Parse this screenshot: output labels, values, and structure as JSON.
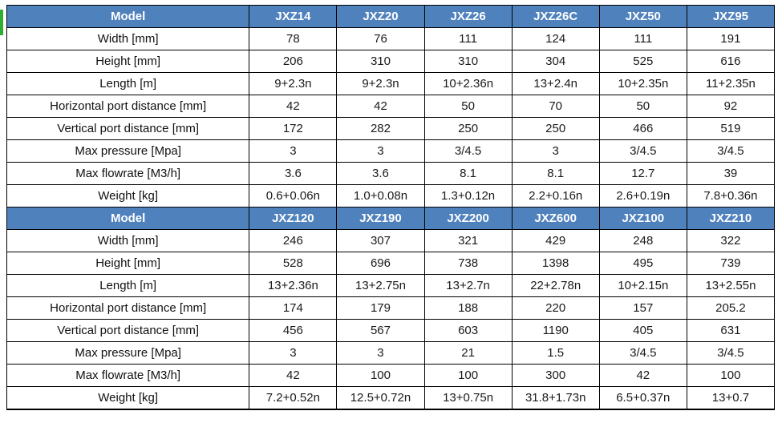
{
  "page": {
    "background": "#ffffff",
    "accent_header_bg": "#4f81bd",
    "accent_header_text": "#ffffff",
    "edge_artifact_color": "#2fae2f"
  },
  "table": {
    "row_label_header": "Model",
    "row_labels": [
      "Width [mm]",
      "Height [mm]",
      "Length [m]",
      "Horizontal port distance [mm]",
      "Vertical port distance  [mm]",
      "Max pressure [Mpa]",
      "Max flowrate  [M3/h]",
      "Weight [kg]"
    ],
    "sections": [
      {
        "models": [
          "JXZ14",
          "JXZ20",
          "JXZ26",
          "JXZ26C",
          "JXZ50",
          "JXZ95"
        ],
        "rows": [
          [
            "78",
            "76",
            "111",
            "124",
            "111",
            "191"
          ],
          [
            "206",
            "310",
            "310",
            "304",
            "525",
            "616"
          ],
          [
            "9+2.3n",
            "9+2.3n",
            "10+2.36n",
            "13+2.4n",
            "10+2.35n",
            "11+2.35n"
          ],
          [
            "42",
            "42",
            "50",
            "70",
            "50",
            "92"
          ],
          [
            "172",
            "282",
            "250",
            "250",
            "466",
            "519"
          ],
          [
            "3",
            "3",
            "3/4.5",
            "3",
            "3/4.5",
            "3/4.5"
          ],
          [
            "3.6",
            "3.6",
            "8.1",
            "8.1",
            "12.7",
            "39"
          ],
          [
            "0.6+0.06n",
            "1.0+0.08n",
            "1.3+0.12n",
            "2.2+0.16n",
            "2.6+0.19n",
            "7.8+0.36n"
          ]
        ]
      },
      {
        "models": [
          "JXZ120",
          "JXZ190",
          "JXZ200",
          "JXZ600",
          "JXZ100",
          "JXZ210"
        ],
        "rows": [
          [
            "246",
            "307",
            "321",
            "429",
            "248",
            "322"
          ],
          [
            "528",
            "696",
            "738",
            "1398",
            "495",
            "739"
          ],
          [
            "13+2.36n",
            "13+2.75n",
            "13+2.7n",
            "22+2.78n",
            "10+2.15n",
            "13+2.55n"
          ],
          [
            "174",
            "179",
            "188",
            "220",
            "157",
            "205.2"
          ],
          [
            "456",
            "567",
            "603",
            "1190",
            "405",
            "631"
          ],
          [
            "3",
            "3",
            "21",
            "1.5",
            "3/4.5",
            "3/4.5"
          ],
          [
            "42",
            "100",
            "100",
            "300",
            "42",
            "100"
          ],
          [
            "7.2+0.52n",
            "12.5+0.72n",
            "13+0.75n",
            "31.8+1.73n",
            "6.5+0.37n",
            "13+0.7"
          ]
        ]
      }
    ]
  }
}
